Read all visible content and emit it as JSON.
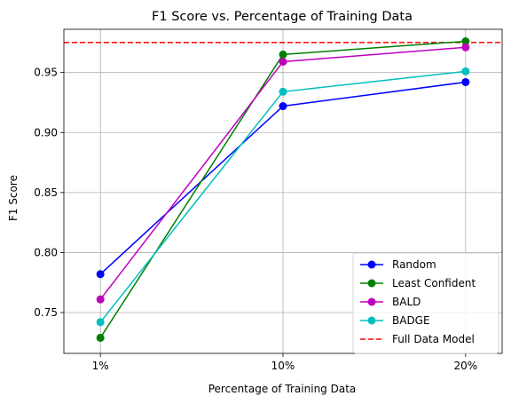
{
  "chart_data": {
    "type": "line",
    "title": "F1 Score vs. Percentage of Training Data",
    "xlabel": "Percentage of Training Data",
    "ylabel": "F1 Score",
    "categories": [
      "1%",
      "10%",
      "20%"
    ],
    "ylim": [
      0.716,
      0.986
    ],
    "yticks": [
      "0.75",
      "0.80",
      "0.85",
      "0.90",
      "0.95"
    ],
    "grid": true,
    "legend_position": "lower-right",
    "series": [
      {
        "name": "Random",
        "color": "#0000ff",
        "values": [
          0.782,
          0.922,
          0.942
        ]
      },
      {
        "name": "Least Confident",
        "color": "#008000",
        "values": [
          0.729,
          0.965,
          0.976
        ]
      },
      {
        "name": "BALD",
        "color": "#bf00bf",
        "values": [
          0.761,
          0.959,
          0.971
        ]
      },
      {
        "name": "BADGE",
        "color": "#00bfbf",
        "values": [
          0.742,
          0.934,
          0.951
        ]
      }
    ],
    "reference_line": {
      "name": "Full Data Model",
      "color": "#ff0000",
      "value": 0.975,
      "style": "dashed"
    }
  }
}
